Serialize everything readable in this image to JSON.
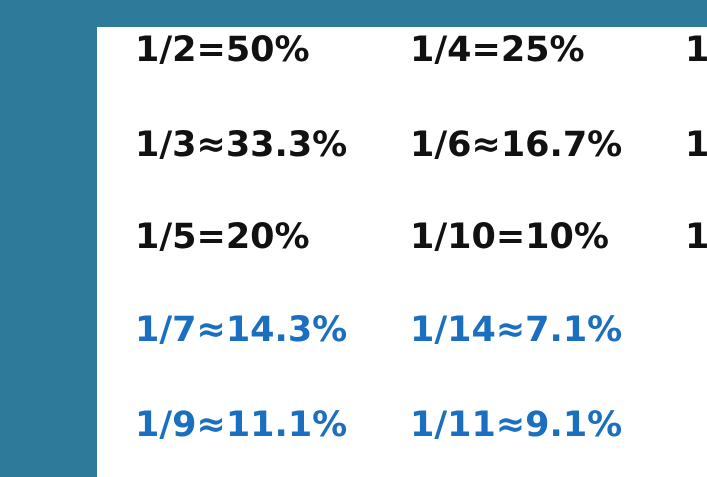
{
  "colors": {
    "background_frame": "#2d7a9a",
    "slide": "#ffffff",
    "text_black": "#111111",
    "text_blue": "#1a6fc0"
  },
  "rows": [
    {
      "col1": "1/2=50%",
      "col2": "1/4=25%",
      "col3": "1"
    },
    {
      "col1": "1/3≈33.3%",
      "col2": "1/6≈16.7%",
      "col3": "1"
    },
    {
      "col1": "1/5=20%",
      "col2": "1/10=10%",
      "col3": "1"
    },
    {
      "col1": "1/7≈14.3%",
      "col2": "1/14≈7.1%"
    },
    {
      "col1": "1/9≈11.1%",
      "col2": "1/11≈9.1%"
    }
  ]
}
